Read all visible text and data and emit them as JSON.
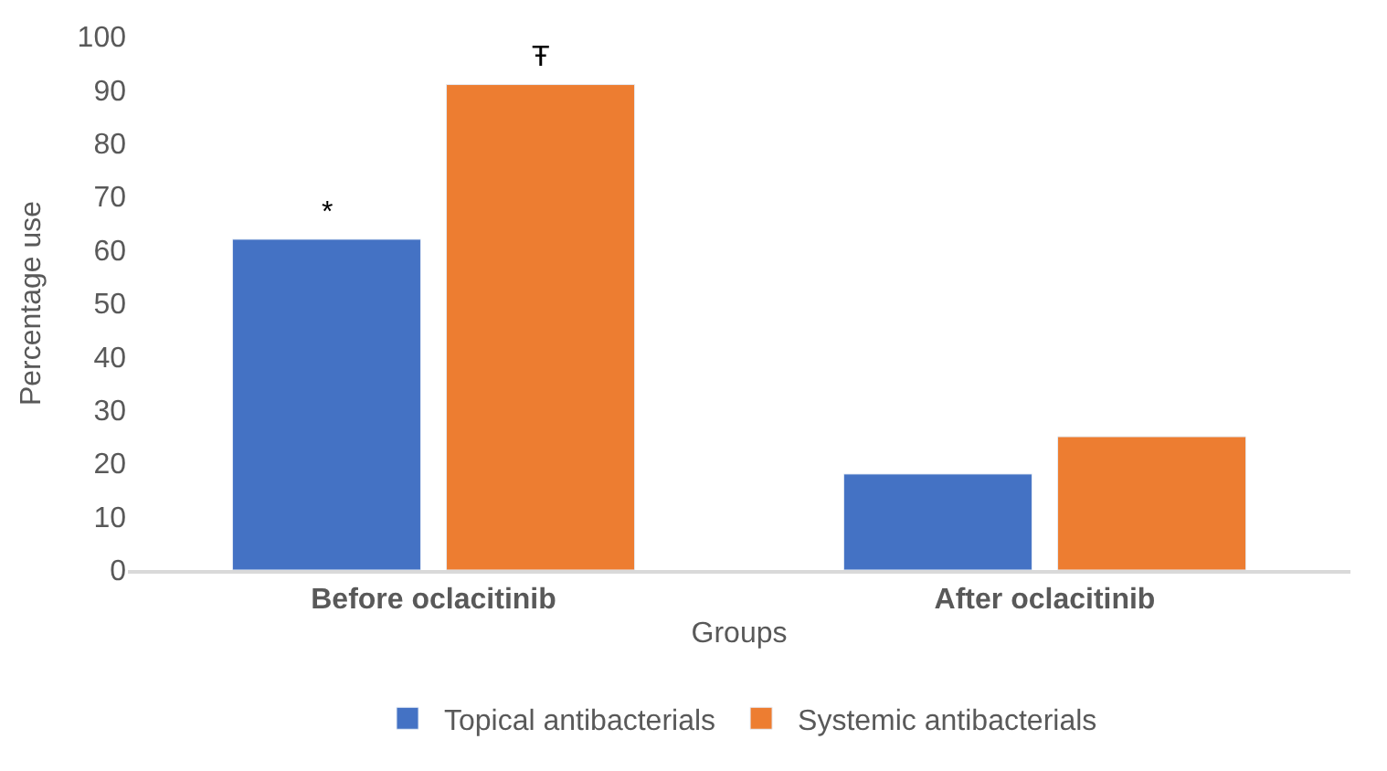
{
  "chart_data": {
    "type": "bar",
    "xlabel": "Groups",
    "ylabel": "Percentage use",
    "categories": [
      "Before oclacitinib",
      "After oclacitinib"
    ],
    "series": [
      {
        "name": "Topical antibacterials",
        "color": "#4472c4",
        "values": [
          62,
          18
        ]
      },
      {
        "name": "Systemic antibacterials",
        "color": "#ed7d31",
        "values": [
          91,
          25
        ]
      }
    ],
    "ylim": [
      0,
      100
    ],
    "yticks": [
      0,
      10,
      20,
      30,
      40,
      50,
      60,
      70,
      80,
      90,
      100
    ],
    "grid": false,
    "legend": "bottom",
    "annotations": [
      "*",
      "Ŧ"
    ]
  }
}
